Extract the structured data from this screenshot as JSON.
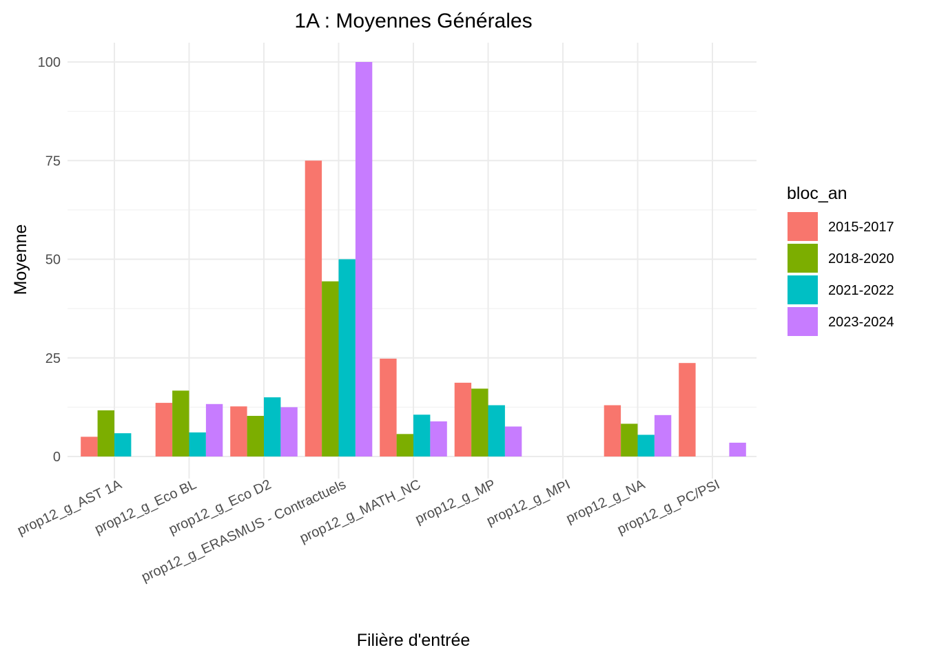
{
  "chart_data": {
    "type": "bar",
    "title": "1A : Moyennes Générales",
    "xlabel": "Filière d'entrée",
    "ylabel": "Moyenne",
    "ylim": [
      -4.5,
      105
    ],
    "yticks": [
      0,
      25,
      50,
      75,
      100
    ],
    "grid": true,
    "legend": {
      "title": "bloc_an",
      "placement": "right"
    },
    "categories": [
      "prop12_g_AST 1A",
      "prop12_g_Eco BL",
      "prop12_g_Eco D2",
      "prop12_g_ERASMUS - Contractuels",
      "prop12_g_MATH_NC",
      "prop12_g_MP",
      "prop12_g_MPI",
      "prop12_g_NA",
      "prop12_g_PC/PSI"
    ],
    "series": [
      {
        "name": "2015-2017",
        "color": "#F8766D",
        "values": [
          5,
          13.6,
          12.7,
          75,
          24.8,
          18.7,
          null,
          13,
          23.7
        ]
      },
      {
        "name": "2018-2020",
        "color": "#7CAE00",
        "values": [
          11.7,
          16.7,
          10.3,
          44.4,
          5.7,
          17.2,
          null,
          8.3,
          null
        ]
      },
      {
        "name": "2021-2022",
        "color": "#00BFC4",
        "values": [
          5.9,
          6.1,
          15,
          50,
          10.6,
          13,
          null,
          5.5,
          null
        ]
      },
      {
        "name": "2023-2024",
        "color": "#C77CFF",
        "values": [
          null,
          13.3,
          12.5,
          100,
          8.9,
          7.6,
          null,
          10.5,
          3.5
        ]
      }
    ]
  }
}
